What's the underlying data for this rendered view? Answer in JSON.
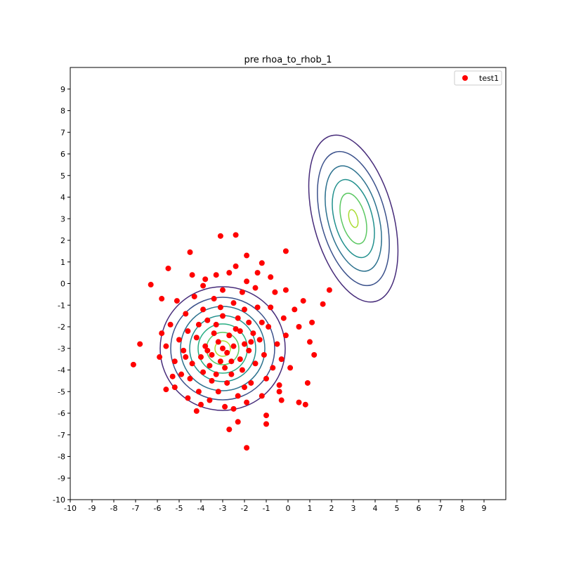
{
  "chart_data": {
    "type": "scatter",
    "title": "pre rhoa_to_rhob_1",
    "xlim": [
      -10,
      10
    ],
    "ylim": [
      -10,
      10
    ],
    "xticks": [
      -10,
      -9,
      -8,
      -7,
      -6,
      -5,
      -4,
      -3,
      -2,
      -1,
      0,
      1,
      2,
      3,
      4,
      5,
      6,
      7,
      8,
      9
    ],
    "yticks": [
      -10,
      -9,
      -8,
      -7,
      -6,
      -5,
      -4,
      -3,
      -2,
      -1,
      0,
      1,
      2,
      3,
      4,
      5,
      6,
      7,
      8,
      9
    ],
    "legend": "upper right",
    "series": [
      {
        "name": "test1",
        "color": "#ff0000",
        "x": [
          -7.1,
          -6.8,
          -6.3,
          -5.8,
          -5.5,
          -4.5,
          -3.1,
          -2.4,
          -1.9,
          -1.2,
          -0.1,
          1.9,
          1.6,
          1.2,
          0.9,
          0.8,
          -1,
          -1,
          -2.3,
          -2.7,
          -1.9,
          -4.2,
          -5.6,
          -5.2,
          0.5,
          -0.3,
          0.5,
          1,
          1.1,
          -0.8,
          -0.1,
          0.7,
          -3,
          -2.8,
          -3.2,
          -2.5,
          -3.5,
          -3.1,
          -2.7,
          -3.4,
          -2.2,
          -3.8,
          -2.9,
          -3.6,
          -2.4,
          -2,
          -4,
          -3.3,
          -2.6,
          -1.8,
          -4.2,
          -3.9,
          -2.1,
          -1.6,
          -4.4,
          -3,
          -2.3,
          -3.7,
          -1.5,
          -4.6,
          -2.8,
          -3.5,
          -1.3,
          -4.8,
          -2,
          -3.9,
          -1.1,
          -5,
          -3.2,
          -1.7,
          -4.5,
          -2.5,
          -0.9,
          -5.2,
          -3.4,
          -1.4,
          -4.7,
          -0.7,
          -2.3,
          -4.1,
          -1,
          -5.4,
          -3,
          -0.5,
          -2.1,
          -4.3,
          -0.4,
          -1.9,
          -5.6,
          -3.6,
          -0.8,
          -4.9,
          -1.5,
          -3.8,
          -0.2,
          -2.7,
          -5.1,
          -0.3,
          -2.9,
          -1.2,
          -4.6,
          -0.6,
          -5.8,
          -3.3,
          -1.9,
          -4.4,
          -0.1,
          -5.3,
          -2.5,
          0.1,
          -1.4,
          -4,
          -2.4,
          -5.9,
          0.3,
          -3.9,
          -0.4,
          -2.2,
          -3.7,
          -2.6,
          -3.3,
          -1.7,
          -4.1,
          -1.2,
          -4.7,
          -2,
          -3.1,
          -1.8
        ],
        "y": [
          -3.75,
          -2.8,
          -0.05,
          -0.7,
          0.7,
          1.45,
          2.2,
          2.25,
          1.3,
          0.95,
          1.5,
          -0.3,
          -0.95,
          -3.3,
          -4.6,
          -5.6,
          -6.1,
          -6.5,
          -6.4,
          -6.75,
          -7.6,
          -5.9,
          -4.9,
          -4.8,
          -5.5,
          -5.4,
          -2,
          -2.7,
          -1.8,
          0.3,
          -0.3,
          -0.8,
          -3,
          -3.2,
          -2.7,
          -2.9,
          -3.3,
          -3.6,
          -2.4,
          -2.3,
          -3.5,
          -2.9,
          -3.9,
          -3.8,
          -2.1,
          -2.8,
          -3.4,
          -1.9,
          -4.2,
          -3.1,
          -2.5,
          -4.1,
          -4,
          -2.3,
          -3.7,
          -1.5,
          -1.6,
          -1.7,
          -3.7,
          -2.2,
          -4.6,
          -4.5,
          -2.6,
          -3.1,
          -1.2,
          -1.2,
          -3.3,
          -2.6,
          -5,
          -4.6,
          -4.4,
          -0.9,
          -2,
          -3.6,
          -0.7,
          -1.1,
          -1.4,
          -3.9,
          -5.2,
          -5,
          -4.4,
          -1.9,
          -0.3,
          -2.8,
          -0.4,
          -0.6,
          -4.7,
          -5.5,
          -2.9,
          -5.4,
          -1.1,
          -4.2,
          -0.2,
          0.2,
          -1.6,
          0.5,
          -0.8,
          -3.5,
          -5.7,
          -5.2,
          -5.3,
          -0.4,
          -2.3,
          0.4,
          0.1,
          0.4,
          -2.4,
          -4.3,
          -5.8,
          -3.9,
          0.5,
          -5.6,
          0.8,
          -3.4,
          -1.2,
          -0.1,
          -5,
          -2.2,
          -3.1,
          -3.6,
          -4.2,
          -2.7,
          -1.9,
          -1.8,
          -3.4,
          -4.8,
          -1.1,
          -1.8
        ]
      }
    ]
  }
}
